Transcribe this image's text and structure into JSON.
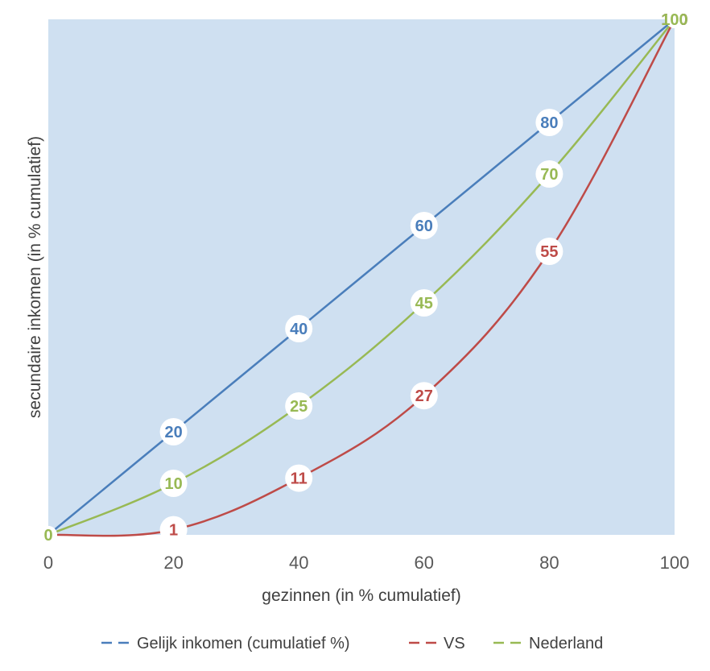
{
  "chart_data": {
    "type": "line",
    "xlabel": "gezinnen (in % cumulatief)",
    "ylabel": "secundaire inkomen (in % cumulatief)",
    "x": [
      0,
      20,
      40,
      60,
      80,
      100
    ],
    "x_ticks": [
      "0",
      "20",
      "40",
      "60",
      "80",
      "100"
    ],
    "xlim": [
      0,
      100
    ],
    "ylim": [
      0,
      100
    ],
    "grid": false,
    "plot_background": "#cfe0f1",
    "legend": "bottom",
    "series": [
      {
        "name": "Gelijk inkomen (cumulatief %)",
        "color": "#4a7ebb",
        "values": [
          0,
          20,
          40,
          60,
          80,
          100
        ],
        "labels": [
          "0",
          "20",
          "40",
          "60",
          "80",
          "100"
        ]
      },
      {
        "name": "VS",
        "color": "#be4b48",
        "values": [
          0,
          1,
          11,
          27,
          55,
          100
        ],
        "labels": [
          "0",
          "1",
          "11",
          "27",
          "55",
          "100"
        ]
      },
      {
        "name": "Nederland",
        "color": "#98b954",
        "values": [
          0,
          10,
          25,
          45,
          70,
          100
        ],
        "labels": [
          "0",
          "10",
          "25",
          "45",
          "70",
          "100"
        ]
      }
    ]
  }
}
